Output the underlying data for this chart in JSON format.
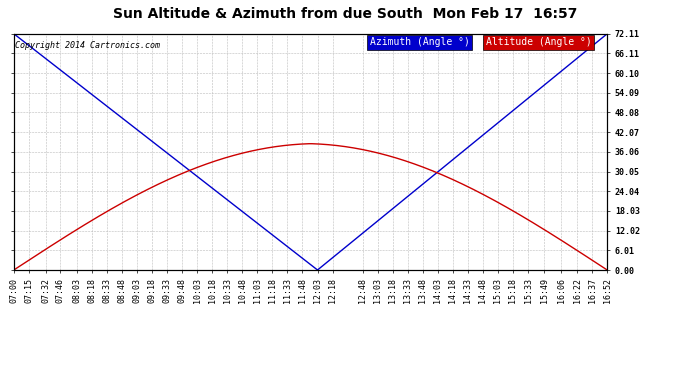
{
  "title": "Sun Altitude & Azimuth from due South  Mon Feb 17  16:57",
  "copyright": "Copyright 2014 Cartronics.com",
  "legend_azimuth": "Azimuth (Angle °)",
  "legend_altitude": "Altitude (Angle °)",
  "yticks": [
    0.0,
    6.01,
    12.02,
    18.03,
    24.04,
    30.05,
    36.06,
    42.07,
    48.08,
    54.09,
    60.1,
    66.11,
    72.11
  ],
  "ylim": [
    0.0,
    72.11
  ],
  "x_labels": [
    "07:00",
    "07:15",
    "07:32",
    "07:46",
    "08:03",
    "08:18",
    "08:33",
    "08:48",
    "09:03",
    "09:18",
    "09:33",
    "09:48",
    "10:03",
    "10:18",
    "10:33",
    "10:48",
    "11:03",
    "11:18",
    "11:33",
    "11:48",
    "12:03",
    "12:18",
    "12:48",
    "13:03",
    "13:18",
    "13:33",
    "13:48",
    "14:03",
    "14:18",
    "14:33",
    "14:48",
    "15:03",
    "15:18",
    "15:33",
    "15:49",
    "16:06",
    "16:22",
    "16:37",
    "16:52"
  ],
  "azimuth_color": "#0000cc",
  "altitude_color": "#cc0000",
  "bg_color": "#ffffff",
  "grid_color": "#bbbbbb",
  "title_fontsize": 10,
  "tick_fontsize": 6,
  "legend_fontsize": 7,
  "copyright_fontsize": 6
}
